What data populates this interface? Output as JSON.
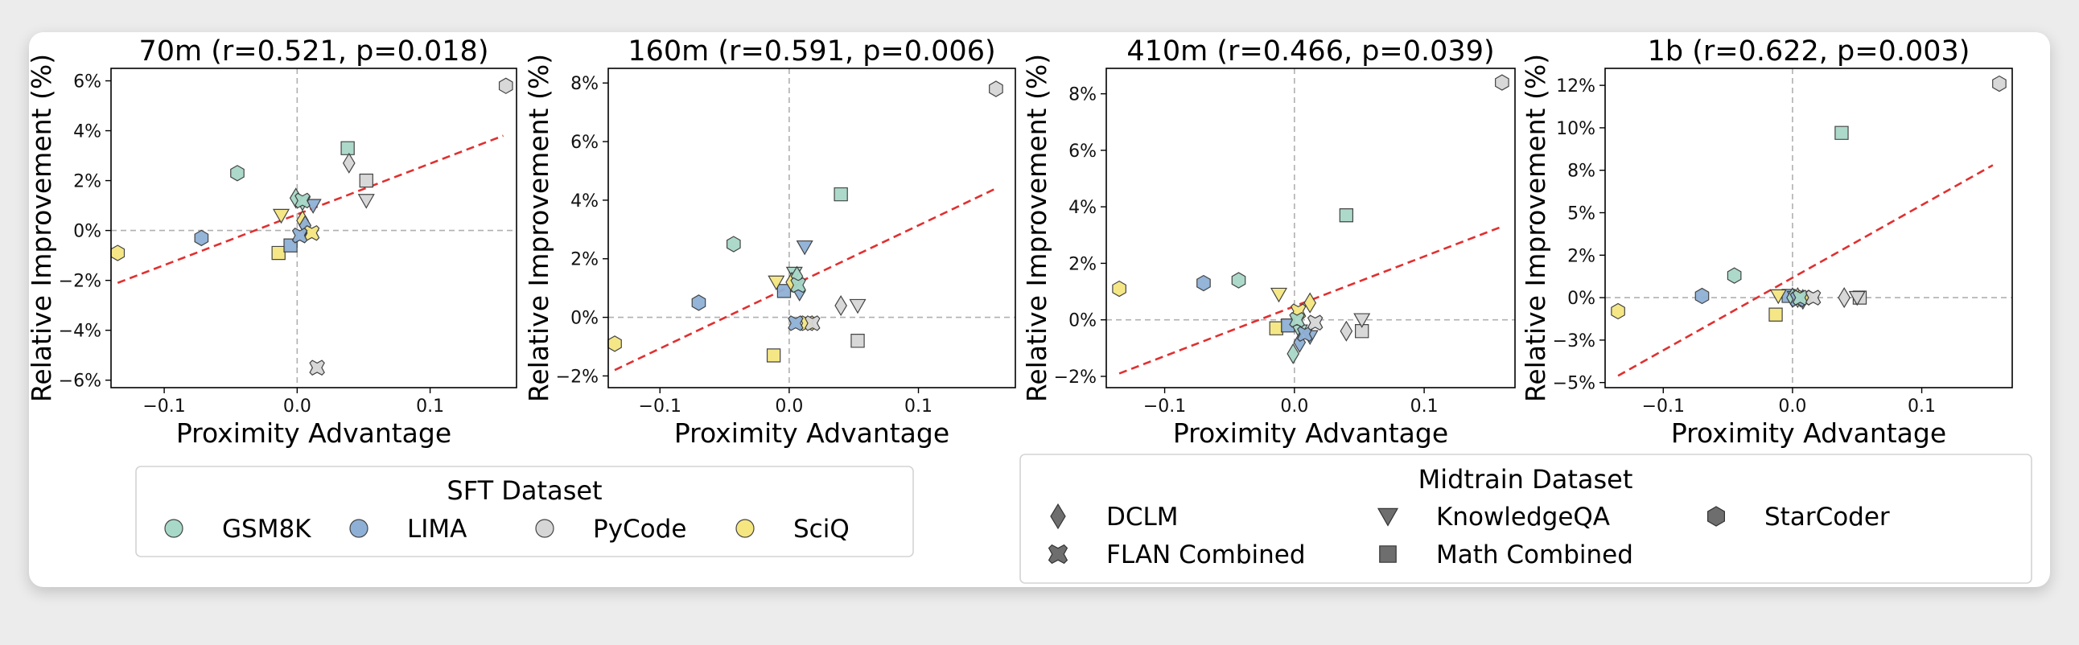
{
  "colors": {
    "GSM8K": "#a8d8c8",
    "LIMA": "#8fb0d6",
    "PyCode": "#d6d6d6",
    "SciQ": "#f5e680",
    "fit_line": "#e03030",
    "reference_line": "#b0b0b0",
    "legend_marker": "#6e6e6e"
  },
  "charts": [
    {
      "title": "70m (r=0.521, p=0.018)",
      "xlabel": "Proximity Advantage",
      "ylabel": "Relative Improvement (%)",
      "xlim": [
        -0.14,
        0.165
      ],
      "ylim": [
        -6.3,
        6.5
      ],
      "xticks": [
        -0.1,
        0.0,
        0.1
      ],
      "xtick_labels": [
        "−0.1",
        "0.0",
        "0.1"
      ],
      "yticks": [
        -6,
        -4,
        -2,
        0,
        2,
        4,
        6
      ],
      "ytick_labels": [
        "−6%",
        "−4%",
        "−2%",
        "0%",
        "2%",
        "4%",
        "6%"
      ],
      "fit_line": {
        "x": [
          -0.135,
          0.155
        ],
        "y": [
          -2.1,
          3.8
        ]
      }
    },
    {
      "title": "160m (r=0.591, p=0.006)",
      "xlabel": "Proximity Advantage",
      "ylabel": "Relative Improvement (%)",
      "xlim": [
        -0.14,
        0.175
      ],
      "ylim": [
        -2.4,
        8.5
      ],
      "xticks": [
        -0.1,
        0.0,
        0.1
      ],
      "xtick_labels": [
        "−0.1",
        "0.0",
        "0.1"
      ],
      "yticks": [
        -2,
        0,
        2,
        4,
        6,
        8
      ],
      "ytick_labels": [
        "−2%",
        "0%",
        "2%",
        "4%",
        "6%",
        "8%"
      ],
      "fit_line": {
        "x": [
          -0.135,
          0.16
        ],
        "y": [
          -1.8,
          4.4
        ]
      }
    },
    {
      "title": "410m (r=0.466, p=0.039)",
      "xlabel": "Proximity Advantage",
      "ylabel": "Relative Improvement (%)",
      "xlim": [
        -0.145,
        0.17
      ],
      "ylim": [
        -2.4,
        8.9
      ],
      "xticks": [
        -0.1,
        0.0,
        0.1
      ],
      "xtick_labels": [
        "−0.1",
        "0.0",
        "0.1"
      ],
      "yticks": [
        -2,
        0,
        2,
        4,
        6,
        8
      ],
      "ytick_labels": [
        "−2%",
        "0%",
        "2%",
        "4%",
        "6%",
        "8%"
      ],
      "fit_line": {
        "x": [
          -0.135,
          0.16
        ],
        "y": [
          -1.9,
          3.3
        ]
      }
    },
    {
      "title": "1b (r=0.622, p=0.003)",
      "xlabel": "Proximity Advantage",
      "ylabel": "Relative Improvement (%)",
      "xlim": [
        -0.145,
        0.17
      ],
      "ylim": [
        -5.3,
        13.5
      ],
      "xticks": [
        -0.1,
        0.0,
        0.1
      ],
      "xtick_labels": [
        "−0.1",
        "0.0",
        "0.1"
      ],
      "yticks": [
        -5,
        -2.5,
        0,
        2.5,
        5,
        7.5,
        10,
        12.5
      ],
      "ytick_labels": [
        "−5%",
        "−3%",
        "0%",
        "2%",
        "5%",
        "8%",
        "10%",
        "12%"
      ],
      "fit_line": {
        "x": [
          -0.135,
          0.155
        ],
        "y": [
          -4.6,
          7.8
        ]
      }
    }
  ],
  "legend_sft": {
    "title": "SFT Dataset",
    "items": [
      "GSM8K",
      "LIMA",
      "PyCode",
      "SciQ"
    ]
  },
  "legend_midtrain": {
    "title": "Midtrain Dataset",
    "items": [
      {
        "label": "DCLM",
        "marker": "diamond"
      },
      {
        "label": "KnowledgeQA",
        "marker": "triangle"
      },
      {
        "label": "StarCoder",
        "marker": "hexagon"
      },
      {
        "label": "FLAN Combined",
        "marker": "x"
      },
      {
        "label": "Math Combined",
        "marker": "square"
      }
    ]
  },
  "chart_data": [
    {
      "type": "scatter",
      "title": "70m (r=0.521, p=0.018)",
      "xlabel": "Proximity Advantage",
      "ylabel": "Relative Improvement (%)",
      "points": [
        {
          "x": -0.135,
          "y": -0.9,
          "sft": "SciQ",
          "midtrain": "StarCoder"
        },
        {
          "x": -0.072,
          "y": -0.3,
          "sft": "LIMA",
          "midtrain": "StarCoder"
        },
        {
          "x": -0.045,
          "y": 2.3,
          "sft": "GSM8K",
          "midtrain": "StarCoder"
        },
        {
          "x": 0.157,
          "y": 5.8,
          "sft": "PyCode",
          "midtrain": "StarCoder"
        },
        {
          "x": -0.014,
          "y": -0.9,
          "sft": "SciQ",
          "midtrain": "Math Combined"
        },
        {
          "x": -0.005,
          "y": -0.6,
          "sft": "LIMA",
          "midtrain": "Math Combined"
        },
        {
          "x": 0.038,
          "y": 3.3,
          "sft": "GSM8K",
          "midtrain": "Math Combined"
        },
        {
          "x": 0.052,
          "y": 2.0,
          "sft": "PyCode",
          "midtrain": "Math Combined"
        },
        {
          "x": -0.012,
          "y": 0.6,
          "sft": "SciQ",
          "midtrain": "KnowledgeQA"
        },
        {
          "x": 0.012,
          "y": 1.0,
          "sft": "LIMA",
          "midtrain": "KnowledgeQA"
        },
        {
          "x": 0.004,
          "y": 1.1,
          "sft": "GSM8K",
          "midtrain": "KnowledgeQA"
        },
        {
          "x": 0.052,
          "y": 1.2,
          "sft": "PyCode",
          "midtrain": "KnowledgeQA"
        },
        {
          "x": 0.004,
          "y": 0.4,
          "sft": "SciQ",
          "midtrain": "DCLM"
        },
        {
          "x": 0.006,
          "y": 0.2,
          "sft": "LIMA",
          "midtrain": "DCLM"
        },
        {
          "x": -0.001,
          "y": 1.3,
          "sft": "GSM8K",
          "midtrain": "DCLM"
        },
        {
          "x": 0.039,
          "y": 2.7,
          "sft": "PyCode",
          "midtrain": "DCLM"
        },
        {
          "x": 0.011,
          "y": -0.1,
          "sft": "SciQ",
          "midtrain": "FLAN Combined"
        },
        {
          "x": 0.002,
          "y": -0.2,
          "sft": "LIMA",
          "midtrain": "FLAN Combined"
        },
        {
          "x": 0.004,
          "y": 1.2,
          "sft": "GSM8K",
          "midtrain": "FLAN Combined"
        },
        {
          "x": 0.015,
          "y": -5.5,
          "sft": "PyCode",
          "midtrain": "FLAN Combined"
        }
      ]
    },
    {
      "type": "scatter",
      "title": "160m (r=0.591, p=0.006)",
      "xlabel": "Proximity Advantage",
      "ylabel": "Relative Improvement (%)",
      "points": [
        {
          "x": -0.135,
          "y": -0.9,
          "sft": "SciQ",
          "midtrain": "StarCoder"
        },
        {
          "x": -0.07,
          "y": 0.5,
          "sft": "LIMA",
          "midtrain": "StarCoder"
        },
        {
          "x": -0.043,
          "y": 2.5,
          "sft": "GSM8K",
          "midtrain": "StarCoder"
        },
        {
          "x": 0.16,
          "y": 7.8,
          "sft": "PyCode",
          "midtrain": "StarCoder"
        },
        {
          "x": -0.012,
          "y": -1.3,
          "sft": "SciQ",
          "midtrain": "Math Combined"
        },
        {
          "x": -0.004,
          "y": 0.9,
          "sft": "LIMA",
          "midtrain": "Math Combined"
        },
        {
          "x": 0.04,
          "y": 4.2,
          "sft": "GSM8K",
          "midtrain": "Math Combined"
        },
        {
          "x": 0.053,
          "y": -0.8,
          "sft": "PyCode",
          "midtrain": "Math Combined"
        },
        {
          "x": -0.01,
          "y": 1.2,
          "sft": "SciQ",
          "midtrain": "KnowledgeQA"
        },
        {
          "x": 0.012,
          "y": 2.4,
          "sft": "LIMA",
          "midtrain": "KnowledgeQA"
        },
        {
          "x": 0.004,
          "y": 1.5,
          "sft": "GSM8K",
          "midtrain": "KnowledgeQA"
        },
        {
          "x": 0.053,
          "y": 0.4,
          "sft": "PyCode",
          "midtrain": "KnowledgeQA"
        },
        {
          "x": 0.002,
          "y": 1.2,
          "sft": "SciQ",
          "midtrain": "DCLM"
        },
        {
          "x": 0.008,
          "y": 0.9,
          "sft": "LIMA",
          "midtrain": "DCLM"
        },
        {
          "x": 0.006,
          "y": 1.4,
          "sft": "GSM8K",
          "midtrain": "DCLM"
        },
        {
          "x": 0.04,
          "y": 0.4,
          "sft": "PyCode",
          "midtrain": "DCLM"
        },
        {
          "x": 0.014,
          "y": -0.2,
          "sft": "SciQ",
          "midtrain": "FLAN Combined"
        },
        {
          "x": 0.005,
          "y": -0.2,
          "sft": "LIMA",
          "midtrain": "FLAN Combined"
        },
        {
          "x": 0.007,
          "y": 1.1,
          "sft": "GSM8K",
          "midtrain": "FLAN Combined"
        },
        {
          "x": 0.018,
          "y": -0.2,
          "sft": "PyCode",
          "midtrain": "FLAN Combined"
        }
      ]
    },
    {
      "type": "scatter",
      "title": "410m (r=0.466, p=0.039)",
      "xlabel": "Proximity Advantage",
      "ylabel": "Relative Improvement (%)",
      "points": [
        {
          "x": -0.135,
          "y": 1.1,
          "sft": "SciQ",
          "midtrain": "StarCoder"
        },
        {
          "x": -0.07,
          "y": 1.3,
          "sft": "LIMA",
          "midtrain": "StarCoder"
        },
        {
          "x": -0.043,
          "y": 1.4,
          "sft": "GSM8K",
          "midtrain": "StarCoder"
        },
        {
          "x": 0.16,
          "y": 8.4,
          "sft": "PyCode",
          "midtrain": "StarCoder"
        },
        {
          "x": -0.014,
          "y": -0.3,
          "sft": "SciQ",
          "midtrain": "Math Combined"
        },
        {
          "x": -0.005,
          "y": -0.2,
          "sft": "LIMA",
          "midtrain": "Math Combined"
        },
        {
          "x": 0.04,
          "y": 3.7,
          "sft": "GSM8K",
          "midtrain": "Math Combined"
        },
        {
          "x": 0.052,
          "y": -0.4,
          "sft": "PyCode",
          "midtrain": "Math Combined"
        },
        {
          "x": -0.012,
          "y": 0.9,
          "sft": "SciQ",
          "midtrain": "KnowledgeQA"
        },
        {
          "x": 0.012,
          "y": -0.6,
          "sft": "LIMA",
          "midtrain": "KnowledgeQA"
        },
        {
          "x": 0.004,
          "y": -0.4,
          "sft": "GSM8K",
          "midtrain": "KnowledgeQA"
        },
        {
          "x": 0.052,
          "y": 0.0,
          "sft": "PyCode",
          "midtrain": "KnowledgeQA"
        },
        {
          "x": 0.012,
          "y": 0.6,
          "sft": "SciQ",
          "midtrain": "DCLM"
        },
        {
          "x": 0.004,
          "y": -0.8,
          "sft": "LIMA",
          "midtrain": "DCLM"
        },
        {
          "x": -0.001,
          "y": -1.2,
          "sft": "GSM8K",
          "midtrain": "DCLM"
        },
        {
          "x": 0.04,
          "y": -0.4,
          "sft": "PyCode",
          "midtrain": "DCLM"
        },
        {
          "x": 0.003,
          "y": 0.3,
          "sft": "SciQ",
          "midtrain": "FLAN Combined"
        },
        {
          "x": 0.008,
          "y": -0.5,
          "sft": "LIMA",
          "midtrain": "FLAN Combined"
        },
        {
          "x": 0.002,
          "y": 0.0,
          "sft": "GSM8K",
          "midtrain": "FLAN Combined"
        },
        {
          "x": 0.016,
          "y": -0.1,
          "sft": "PyCode",
          "midtrain": "FLAN Combined"
        }
      ]
    },
    {
      "type": "scatter",
      "title": "1b (r=0.622, p=0.003)",
      "xlabel": "Proximity Advantage",
      "ylabel": "Relative Improvement (%)",
      "points": [
        {
          "x": -0.135,
          "y": -0.8,
          "sft": "SciQ",
          "midtrain": "StarCoder"
        },
        {
          "x": -0.07,
          "y": 0.1,
          "sft": "LIMA",
          "midtrain": "StarCoder"
        },
        {
          "x": -0.045,
          "y": 1.3,
          "sft": "GSM8K",
          "midtrain": "StarCoder"
        },
        {
          "x": 0.16,
          "y": 12.6,
          "sft": "PyCode",
          "midtrain": "StarCoder"
        },
        {
          "x": -0.013,
          "y": -1.0,
          "sft": "SciQ",
          "midtrain": "Math Combined"
        },
        {
          "x": -0.003,
          "y": 0.1,
          "sft": "LIMA",
          "midtrain": "Math Combined"
        },
        {
          "x": 0.038,
          "y": 9.7,
          "sft": "GSM8K",
          "midtrain": "Math Combined"
        },
        {
          "x": 0.052,
          "y": 0.0,
          "sft": "PyCode",
          "midtrain": "Math Combined"
        },
        {
          "x": -0.011,
          "y": 0.1,
          "sft": "SciQ",
          "midtrain": "KnowledgeQA"
        },
        {
          "x": 0.006,
          "y": -0.1,
          "sft": "LIMA",
          "midtrain": "KnowledgeQA"
        },
        {
          "x": 0.002,
          "y": 0.0,
          "sft": "GSM8K",
          "midtrain": "KnowledgeQA"
        },
        {
          "x": 0.05,
          "y": 0.0,
          "sft": "PyCode",
          "midtrain": "KnowledgeQA"
        },
        {
          "x": 0.004,
          "y": 0.0,
          "sft": "SciQ",
          "midtrain": "DCLM"
        },
        {
          "x": 0.008,
          "y": -0.1,
          "sft": "LIMA",
          "midtrain": "DCLM"
        },
        {
          "x": 0.0,
          "y": 0.0,
          "sft": "GSM8K",
          "midtrain": "DCLM"
        },
        {
          "x": 0.04,
          "y": 0.0,
          "sft": "PyCode",
          "midtrain": "DCLM"
        },
        {
          "x": 0.009,
          "y": 0.0,
          "sft": "SciQ",
          "midtrain": "FLAN Combined"
        },
        {
          "x": 0.004,
          "y": -0.1,
          "sft": "LIMA",
          "midtrain": "FLAN Combined"
        },
        {
          "x": 0.006,
          "y": 0.0,
          "sft": "GSM8K",
          "midtrain": "FLAN Combined"
        },
        {
          "x": 0.016,
          "y": 0.0,
          "sft": "PyCode",
          "midtrain": "FLAN Combined"
        }
      ]
    }
  ]
}
